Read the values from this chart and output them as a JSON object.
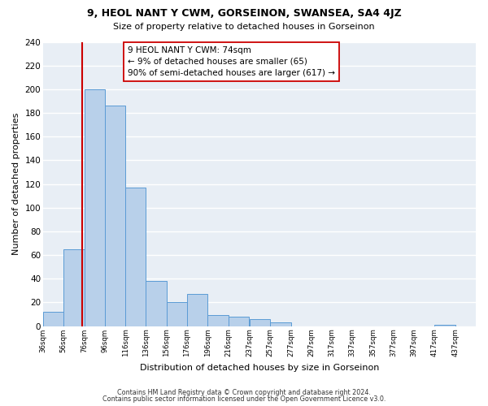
{
  "title": "9, HEOL NANT Y CWM, GORSEINON, SWANSEA, SA4 4JZ",
  "subtitle": "Size of property relative to detached houses in Gorseinon",
  "xlabel": "Distribution of detached houses by size in Gorseinon",
  "ylabel": "Number of detached properties",
  "footer_line1": "Contains HM Land Registry data © Crown copyright and database right 2024.",
  "footer_line2": "Contains public sector information licensed under the Open Government Licence v3.0.",
  "bin_left_edges": [
    36,
    56,
    76,
    96,
    116,
    136,
    156,
    176,
    196,
    216,
    237,
    257,
    277,
    297,
    317,
    337,
    357,
    377,
    397,
    417
  ],
  "bin_width": 20,
  "bar_heights": [
    12,
    65,
    200,
    186,
    117,
    38,
    20,
    27,
    9,
    8,
    6,
    3,
    0,
    0,
    0,
    0,
    0,
    0,
    0,
    1
  ],
  "bar_color": "#b8d0ea",
  "bar_edge_color": "#5b9bd5",
  "property_line_x": 74,
  "property_line_color": "#cc0000",
  "annotation_line1": "9 HEOL NANT Y CWM: 74sqm",
  "annotation_line2": "← 9% of detached houses are smaller (65)",
  "annotation_line3": "90% of semi-detached houses are larger (617) →",
  "annotation_box_color": "white",
  "annotation_box_edge_color": "#cc0000",
  "ylim": [
    0,
    240
  ],
  "yticks": [
    0,
    20,
    40,
    60,
    80,
    100,
    120,
    140,
    160,
    180,
    200,
    220,
    240
  ],
  "xlim_left": 36,
  "xlim_right": 457,
  "bg_color": "#e8eef5",
  "grid_color": "#ffffff",
  "tick_labels": [
    "36sqm",
    "56sqm",
    "76sqm",
    "96sqm",
    "116sqm",
    "136sqm",
    "156sqm",
    "176sqm",
    "196sqm",
    "216sqm",
    "237sqm",
    "257sqm",
    "277sqm",
    "297sqm",
    "317sqm",
    "337sqm",
    "357sqm",
    "377sqm",
    "397sqm",
    "417sqm",
    "437sqm"
  ]
}
